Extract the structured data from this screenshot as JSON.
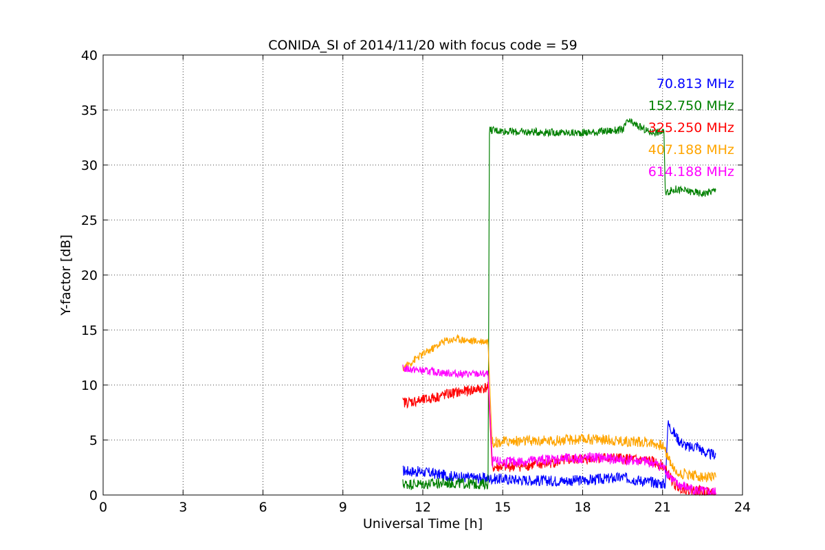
{
  "chart_data": {
    "type": "line",
    "title": "CONIDA_SI of 2014/11/20 with focus code = 59",
    "xlabel": "Universal Time [h]",
    "ylabel": "Y-factor [dB]",
    "xlim": [
      0,
      24
    ],
    "ylim": [
      0,
      40
    ],
    "xticks": [
      0,
      3,
      6,
      9,
      12,
      15,
      18,
      21,
      24
    ],
    "yticks": [
      0,
      5,
      10,
      15,
      20,
      25,
      30,
      35,
      40
    ],
    "grid": true,
    "legend_placement": "top-right",
    "series": [
      {
        "name": "70.813 MHz",
        "color": "#0000ff",
        "x": [
          11.25,
          12.0,
          12.8,
          13.5,
          14.45,
          14.5,
          15.5,
          16.5,
          17.5,
          18.5,
          19.5,
          20.5,
          21.1,
          21.2,
          21.6,
          21.8,
          22.0,
          22.3,
          22.5,
          22.7,
          23.0
        ],
        "y": [
          2.2,
          2.1,
          1.8,
          1.6,
          1.5,
          1.5,
          1.4,
          1.3,
          1.3,
          1.4,
          1.6,
          1.2,
          1.0,
          6.5,
          5.0,
          4.6,
          4.3,
          4.5,
          4.0,
          3.7,
          3.7
        ]
      },
      {
        "name": "152.750 MHz",
        "color": "#008000",
        "x": [
          11.25,
          12.0,
          13.0,
          14.0,
          14.45,
          14.5,
          15.5,
          16.5,
          17.5,
          18.5,
          19.5,
          19.7,
          20.5,
          21.05,
          21.1,
          21.5,
          22.0,
          22.5,
          23.0
        ],
        "y": [
          1.0,
          1.0,
          1.1,
          1.0,
          1.0,
          33.2,
          33.0,
          33.0,
          32.9,
          33.0,
          33.2,
          34.0,
          33.0,
          33.0,
          27.5,
          27.8,
          27.6,
          27.4,
          27.7
        ]
      },
      {
        "name": "325.250 MHz",
        "color": "#ff0000",
        "x": [
          11.25,
          12.0,
          13.0,
          14.0,
          14.45,
          14.6,
          15.5,
          16.5,
          17.5,
          18.5,
          19.5,
          20.5,
          21.0,
          21.5,
          22.0,
          22.5,
          23.0
        ],
        "y": [
          8.4,
          8.6,
          9.2,
          9.6,
          9.8,
          2.5,
          2.6,
          2.8,
          3.2,
          3.4,
          3.3,
          3.1,
          2.7,
          0.8,
          0.5,
          0.3,
          0.2
        ]
      },
      {
        "name": "407.188 MHz",
        "color": "#ffa500",
        "x": [
          11.25,
          11.8,
          12.3,
          12.8,
          13.3,
          13.8,
          14.45,
          14.6,
          15.5,
          16.5,
          17.5,
          18.5,
          19.5,
          20.5,
          21.0,
          21.5,
          22.0,
          22.5,
          23.0
        ],
        "y": [
          11.5,
          12.5,
          13.2,
          14.0,
          14.2,
          14.0,
          14.0,
          4.8,
          4.9,
          4.9,
          5.0,
          5.1,
          4.9,
          4.8,
          4.5,
          2.0,
          1.9,
          1.6,
          1.6
        ]
      },
      {
        "name": "614.188 MHz",
        "color": "#ff00ff",
        "x": [
          11.25,
          12.0,
          12.8,
          13.5,
          14.45,
          14.6,
          15.5,
          16.5,
          17.5,
          18.5,
          19.5,
          20.5,
          21.0,
          21.5,
          22.0,
          22.5,
          23.0
        ],
        "y": [
          11.5,
          11.3,
          11.1,
          11.0,
          11.0,
          3.0,
          3.0,
          3.2,
          3.3,
          3.4,
          3.2,
          3.0,
          2.6,
          1.0,
          0.6,
          0.3,
          0.2
        ]
      }
    ]
  }
}
